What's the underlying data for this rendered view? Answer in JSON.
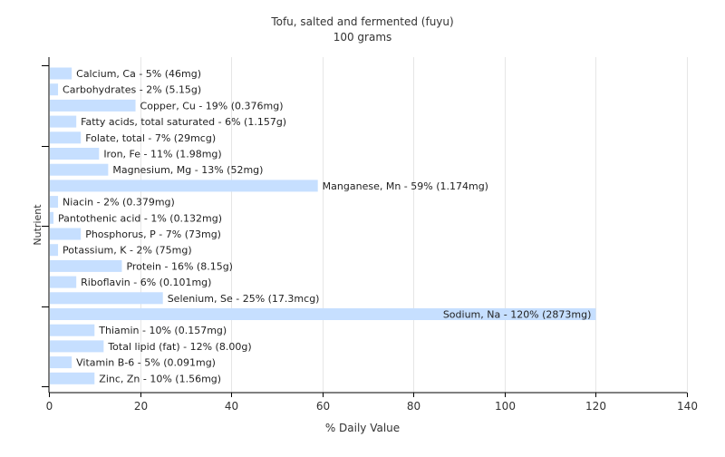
{
  "chart_data": {
    "type": "bar",
    "orientation": "horizontal",
    "title": "Tofu, salted and fermented (fuyu)",
    "subtitle": "100 grams",
    "xlabel": "% Daily Value",
    "ylabel": "Nutrient",
    "xlim": [
      0,
      140
    ],
    "xticks": [
      "0",
      "20",
      "40",
      "60",
      "80",
      "100",
      "120",
      "140"
    ],
    "grid": true,
    "bar_color": "#c6dfff",
    "categories": [
      "Calcium, Ca - 5% (46mg)",
      "Carbohydrates - 2% (5.15g)",
      "Copper, Cu - 19% (0.376mg)",
      "Fatty acids, total saturated - 6% (1.157g)",
      "Folate, total - 7% (29mcg)",
      "Iron, Fe - 11% (1.98mg)",
      "Magnesium, Mg - 13% (52mg)",
      "Manganese, Mn - 59% (1.174mg)",
      "Niacin - 2% (0.379mg)",
      "Pantothenic acid - 1% (0.132mg)",
      "Phosphorus, P - 7% (73mg)",
      "Potassium, K - 2% (75mg)",
      "Protein - 16% (8.15g)",
      "Riboflavin - 6% (0.101mg)",
      "Selenium, Se - 25% (17.3mcg)",
      "Sodium, Na - 120% (2873mg)",
      "Thiamin - 10% (0.157mg)",
      "Total lipid (fat) - 12% (8.00g)",
      "Vitamin B-6 - 5% (0.091mg)",
      "Zinc, Zn - 10% (1.56mg)"
    ],
    "values": [
      5,
      2,
      19,
      6,
      7,
      11,
      13,
      59,
      2,
      1,
      7,
      2,
      16,
      6,
      25,
      120,
      10,
      12,
      5,
      10
    ]
  }
}
